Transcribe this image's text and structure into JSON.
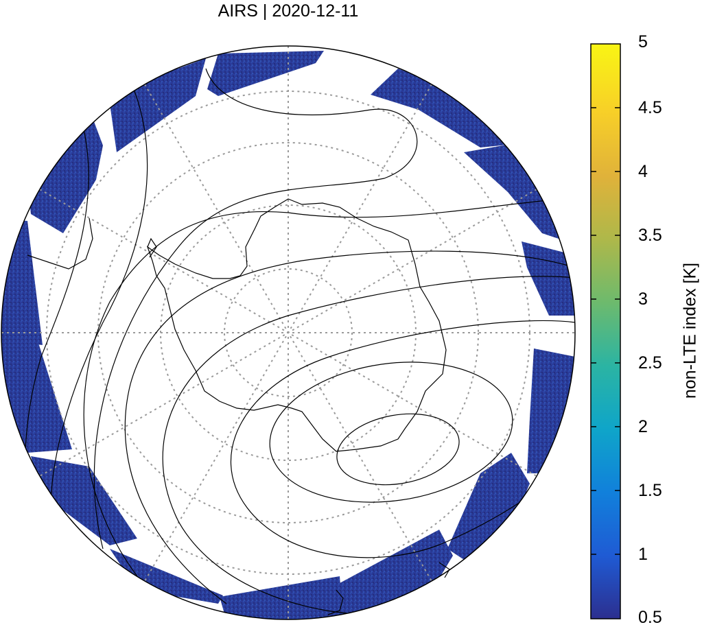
{
  "title": "AIRS | 2020-12-11",
  "colorbar": {
    "label": "non-LTE index [K]",
    "ticks": [
      "5",
      "4.5",
      "4",
      "3.5",
      "3",
      "2.5",
      "2",
      "1.5",
      "1",
      "0.5"
    ],
    "min": 0.5,
    "max": 5,
    "colors": [
      "#2c2f8f",
      "#1f5bd4",
      "#1180db",
      "#0fa5c9",
      "#2bb4a3",
      "#6dba6d",
      "#aeb84a",
      "#e0b23a",
      "#f7cf28",
      "#f9f514"
    ]
  },
  "map": {
    "projection": "south-polar-orthographic",
    "swath_color": "#2a3b9a",
    "gridline_color": "#9a9a9a"
  }
}
